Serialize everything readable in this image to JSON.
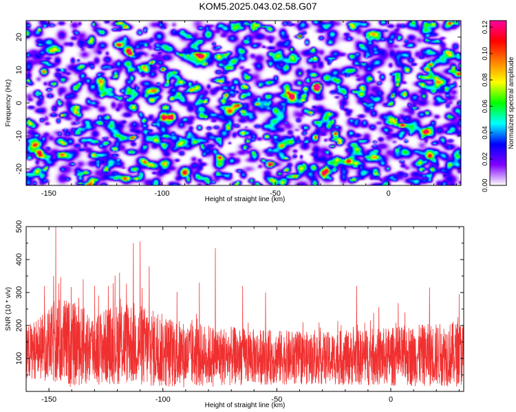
{
  "chart_data": [
    {
      "type": "heatmap",
      "title": "KOM5.2025.043.02.58.G07",
      "xlabel": "Height of straight line (km)",
      "ylabel": "Frequency (Hz)",
      "xlim": [
        -160,
        32
      ],
      "ylim": [
        -25,
        25
      ],
      "xticks": [
        -150,
        -100,
        -50,
        0
      ],
      "yticks": [
        -20,
        -10,
        0,
        10,
        20
      ],
      "colorbar": {
        "label": "Normalized spectral amplitude",
        "range": [
          0,
          0.125
        ],
        "ticks": [
          "0.00",
          "0.02",
          "0.04",
          "0.06",
          "0.08",
          "0.10",
          "0.12"
        ],
        "colors": [
          "#ffffff",
          "#8000ff",
          "#0000ff",
          "#00ffff",
          "#00ff00",
          "#ffff00",
          "#ff8000",
          "#ff0000",
          "#ff00a0"
        ]
      },
      "description_values": {
        "background_level": 0.02,
        "peak_level": 0.12,
        "hotspots": [
          {
            "x": -114,
            "y": 15,
            "v": 0.12
          },
          {
            "x": -96,
            "y": 1.5,
            "v": 0.11
          },
          {
            "x": -125,
            "y": -20,
            "v": 0.11
          },
          {
            "x": -54,
            "y": -10,
            "v": 0.11
          },
          {
            "x": -37,
            "y": 4.5,
            "v": 0.1
          },
          {
            "x": -24,
            "y": -9,
            "v": 0.1
          },
          {
            "x": -148,
            "y": 6,
            "v": 0.09
          },
          {
            "x": -100,
            "y": -4,
            "v": 0.09
          },
          {
            "x": -72,
            "y": 2.5,
            "v": 0.08
          },
          {
            "x": 18,
            "y": -16,
            "v": 0.09
          },
          {
            "x": -45,
            "y": -20,
            "v": 0.09
          },
          {
            "x": -108,
            "y": -5,
            "v": 0.08
          }
        ]
      }
    },
    {
      "type": "line",
      "xlabel": "Height of straight line (km)",
      "ylabel": "SNR (10 * v/v)",
      "xlim": [
        -160,
        32
      ],
      "ylim": [
        0,
        500
      ],
      "xticks": [
        -150,
        -100,
        -50,
        0
      ],
      "yticks": [
        100,
        200,
        300,
        400,
        500
      ],
      "color": "#f03030",
      "envelope": [
        {
          "x": -160,
          "base": 120,
          "amp": 80
        },
        {
          "x": -150,
          "base": 140,
          "amp": 110
        },
        {
          "x": -145,
          "base": 150,
          "amp": 140
        },
        {
          "x": -130,
          "base": 130,
          "amp": 110
        },
        {
          "x": -115,
          "base": 150,
          "amp": 130
        },
        {
          "x": -105,
          "base": 130,
          "amp": 120
        },
        {
          "x": -90,
          "base": 110,
          "amp": 100
        },
        {
          "x": -60,
          "base": 105,
          "amp": 85
        },
        {
          "x": -30,
          "base": 100,
          "amp": 80
        },
        {
          "x": 0,
          "base": 105,
          "amp": 90
        },
        {
          "x": 32,
          "base": 115,
          "amp": 100
        }
      ],
      "spikes": [
        {
          "x": -147,
          "y": 500
        },
        {
          "x": -148,
          "y": 350
        },
        {
          "x": -152,
          "y": 320
        },
        {
          "x": -113,
          "y": 450
        },
        {
          "x": -110,
          "y": 455
        },
        {
          "x": -106,
          "y": 380
        },
        {
          "x": -119,
          "y": 360
        },
        {
          "x": -77,
          "y": 435
        },
        {
          "x": -124,
          "y": 320
        },
        {
          "x": -130,
          "y": 320
        },
        {
          "x": -135,
          "y": 340
        },
        {
          "x": -84,
          "y": 330
        },
        {
          "x": -65,
          "y": 320
        },
        {
          "x": -55,
          "y": 300
        },
        {
          "x": -15,
          "y": 320
        },
        {
          "x": 17,
          "y": 315
        },
        {
          "x": 30,
          "y": 295
        }
      ]
    }
  ]
}
